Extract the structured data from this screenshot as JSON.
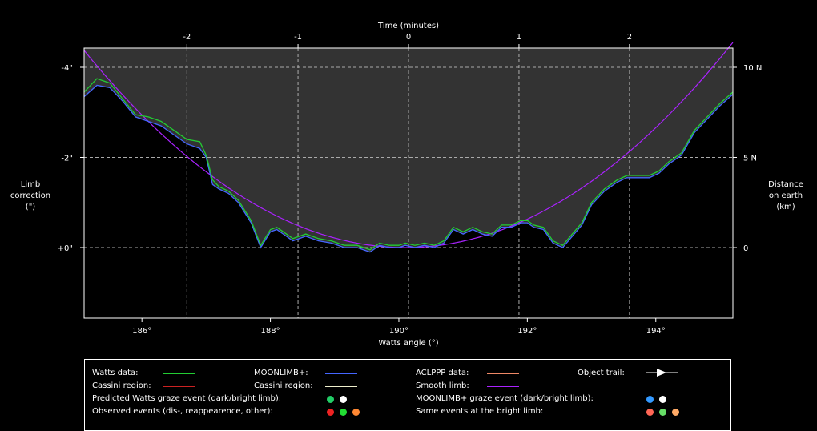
{
  "chart_data": {
    "type": "line",
    "title": "",
    "xlabel": "Watts angle (°)",
    "x2label": "Time (minutes)",
    "ylabel_left": [
      "Limb",
      "correction",
      "(\")"
    ],
    "ylabel_right": [
      "Distance",
      "on earth",
      "(km)"
    ],
    "xlim": [
      185.1,
      195.2
    ],
    "ylim_arcsec": [
      -0.8,
      -4.4
    ],
    "x_ticks": [
      186,
      188,
      190,
      192,
      194
    ],
    "x_tick_labels": [
      "186°",
      "188°",
      "190°",
      "192°",
      "194°"
    ],
    "time_ticks": [
      -2,
      -1,
      0,
      1,
      2
    ],
    "time_ticks_watts_angle": [
      186.7,
      188.43,
      190.15,
      191.87,
      193.59
    ],
    "y_left_ticks": [
      -4,
      -2,
      0
    ],
    "y_left_tick_labels": [
      "-4\"",
      "-2\"",
      "+0\""
    ],
    "y_right_ticks_arcsec": [
      -4.0,
      -2.0,
      0
    ],
    "y_right_tick_labels": [
      "10 N",
      "5 N",
      "0"
    ],
    "grid": true,
    "series": [
      {
        "name": "Watts data:",
        "color": "#22cc33",
        "x": [
          185.1,
          185.3,
          185.5,
          185.7,
          185.9,
          186.1,
          186.3,
          186.5,
          186.7,
          186.9,
          187.0,
          187.1,
          187.2,
          187.35,
          187.5,
          187.7,
          187.85,
          188.0,
          188.1,
          188.2,
          188.35,
          188.55,
          188.75,
          188.95,
          189.15,
          189.35,
          189.55,
          189.7,
          189.85,
          190.0,
          190.1,
          190.25,
          190.4,
          190.55,
          190.7,
          190.85,
          191.0,
          191.15,
          191.3,
          191.45,
          191.6,
          191.75,
          191.9,
          192.0,
          192.1,
          192.25,
          192.4,
          192.55,
          192.7,
          192.85,
          193.0,
          193.2,
          193.4,
          193.55,
          193.7,
          193.9,
          194.05,
          194.2,
          194.4,
          194.6,
          194.8,
          195.0,
          195.2
        ],
        "y": [
          -3.45,
          -3.75,
          -3.65,
          -3.3,
          -2.95,
          -2.9,
          -2.8,
          -2.6,
          -2.4,
          -2.35,
          -2.05,
          -1.5,
          -1.35,
          -1.25,
          -1.05,
          -0.6,
          -0.05,
          -0.4,
          -0.45,
          -0.35,
          -0.2,
          -0.3,
          -0.2,
          -0.15,
          -0.05,
          -0.05,
          0.05,
          -0.1,
          -0.05,
          -0.05,
          -0.1,
          -0.05,
          -0.1,
          -0.05,
          -0.15,
          -0.45,
          -0.35,
          -0.45,
          -0.35,
          -0.3,
          -0.5,
          -0.5,
          -0.6,
          -0.6,
          -0.5,
          -0.45,
          -0.15,
          -0.05,
          -0.3,
          -0.55,
          -1.0,
          -1.3,
          -1.5,
          -1.6,
          -1.6,
          -1.6,
          -1.7,
          -1.9,
          -2.1,
          -2.6,
          -2.9,
          -3.2,
          -3.45
        ]
      },
      {
        "name": "MOONLIMB+:",
        "color": "#4466ff",
        "x": [
          185.1,
          185.3,
          185.5,
          185.7,
          185.9,
          186.1,
          186.3,
          186.5,
          186.7,
          186.9,
          187.0,
          187.1,
          187.2,
          187.35,
          187.5,
          187.7,
          187.85,
          188.0,
          188.1,
          188.2,
          188.35,
          188.55,
          188.75,
          188.95,
          189.15,
          189.35,
          189.55,
          189.7,
          189.85,
          190.0,
          190.1,
          190.25,
          190.4,
          190.55,
          190.7,
          190.85,
          191.0,
          191.15,
          191.3,
          191.45,
          191.6,
          191.75,
          191.9,
          192.0,
          192.1,
          192.25,
          192.4,
          192.55,
          192.7,
          192.85,
          193.0,
          193.2,
          193.4,
          193.55,
          193.7,
          193.9,
          194.05,
          194.2,
          194.4,
          194.6,
          194.8,
          195.0,
          195.2
        ],
        "y": [
          -3.35,
          -3.6,
          -3.55,
          -3.25,
          -2.9,
          -2.8,
          -2.7,
          -2.5,
          -2.3,
          -2.2,
          -2.0,
          -1.4,
          -1.3,
          -1.2,
          -1.0,
          -0.55,
          0.0,
          -0.35,
          -0.4,
          -0.3,
          -0.15,
          -0.25,
          -0.15,
          -0.1,
          0.0,
          0.0,
          0.1,
          -0.05,
          0.0,
          0.0,
          -0.05,
          0.0,
          -0.05,
          0.0,
          -0.1,
          -0.4,
          -0.3,
          -0.4,
          -0.3,
          -0.25,
          -0.45,
          -0.45,
          -0.55,
          -0.55,
          -0.45,
          -0.4,
          -0.1,
          0.0,
          -0.25,
          -0.5,
          -0.95,
          -1.25,
          -1.45,
          -1.55,
          -1.55,
          -1.55,
          -1.65,
          -1.85,
          -2.05,
          -2.55,
          -2.85,
          -3.15,
          -3.4
        ]
      },
      {
        "name": "Smooth limb:",
        "color": "#aa22ff",
        "vertex_x": 190.1,
        "vertex_y": 0.0,
        "curvature": 0.175
      }
    ],
    "legend_entries": [
      {
        "label": "Watts data:",
        "color": "#22cc33",
        "kind": "line"
      },
      {
        "label": "MOONLIMB+:",
        "color": "#4466ff",
        "kind": "line"
      },
      {
        "label": "ACLPPP data:",
        "color": "#ee8866",
        "kind": "line"
      },
      {
        "label": "Object trail:",
        "color": "#ffffff",
        "kind": "arrow"
      },
      {
        "label": "Cassini region:",
        "color": "#cc2222",
        "kind": "line"
      },
      {
        "label": "Cassini region:",
        "color": "#eeeecc",
        "kind": "line"
      },
      {
        "label": "Smooth limb:",
        "color": "#aa22ff",
        "kind": "line"
      },
      {
        "label": "Predicted Watts graze event (dark/bright limb):",
        "dots": [
          "#22cc66",
          "#ffffff"
        ]
      },
      {
        "label": "MOONLIMB+ graze event (dark/bright limb):",
        "dots": [
          "#3399ff",
          "#ffffff"
        ]
      },
      {
        "label": "Observed events (dis-, reappearence, other):",
        "dots": [
          "#ee2222",
          "#22dd33",
          "#ff8833"
        ]
      },
      {
        "label": "Same events at the bright limb:",
        "dots": [
          "#ff6655",
          "#66dd66",
          "#ffaa66"
        ]
      }
    ],
    "background": "#000000",
    "plot_fill": "#333333"
  }
}
